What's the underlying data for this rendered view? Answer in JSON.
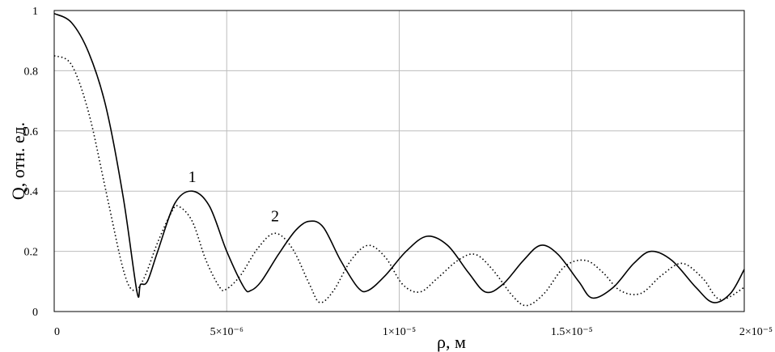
{
  "chart_data": {
    "type": "line",
    "title": "",
    "xlabel": "ρ, м",
    "ylabel": "Q, отн. ед.",
    "xlim": [
      0,
      2e-05
    ],
    "ylim": [
      0,
      1
    ],
    "grid": true,
    "x_ticks": [
      {
        "value": 0,
        "label": "0"
      },
      {
        "value": 5e-06,
        "label": "5×10⁻⁶"
      },
      {
        "value": 1e-05,
        "label": "1×10⁻⁵"
      },
      {
        "value": 1.5e-05,
        "label": "1.5×10⁻⁵"
      },
      {
        "value": 2e-05,
        "label": "2×10⁻⁵"
      }
    ],
    "y_ticks": [
      {
        "value": 0,
        "label": "0"
      },
      {
        "value": 0.2,
        "label": "0.2"
      },
      {
        "value": 0.4,
        "label": "0.4"
      },
      {
        "value": 0.6,
        "label": "0.6"
      },
      {
        "value": 0.8,
        "label": "0.8"
      },
      {
        "value": 1,
        "label": "1"
      }
    ],
    "series": [
      {
        "label": "1",
        "style": "solid",
        "label_at": [
          4e-06,
          0.43
        ],
        "points": [
          [
            0,
            0.99
          ],
          [
            5e-07,
            0.96
          ],
          [
            1e-06,
            0.86
          ],
          [
            1.5e-06,
            0.68
          ],
          [
            2e-06,
            0.38
          ],
          [
            2.5e-06,
            0.09
          ],
          [
            2.4e-06,
            0.065
          ],
          [
            2.7e-06,
            0.1
          ],
          [
            3e-06,
            0.2
          ],
          [
            3.5e-06,
            0.36
          ],
          [
            4e-06,
            0.4
          ],
          [
            4.5e-06,
            0.35
          ],
          [
            5e-06,
            0.2
          ],
          [
            5.5e-06,
            0.08
          ],
          [
            5.7e-06,
            0.07
          ],
          [
            6e-06,
            0.1
          ],
          [
            6.5e-06,
            0.19
          ],
          [
            7e-06,
            0.27
          ],
          [
            7.4e-06,
            0.3
          ],
          [
            7.8e-06,
            0.28
          ],
          [
            8.3e-06,
            0.17
          ],
          [
            8.8e-06,
            0.08
          ],
          [
            9.1e-06,
            0.07
          ],
          [
            9.6e-06,
            0.12
          ],
          [
            1.02e-05,
            0.2
          ],
          [
            1.08e-05,
            0.25
          ],
          [
            1.14e-05,
            0.22
          ],
          [
            1.2e-05,
            0.13
          ],
          [
            1.25e-05,
            0.065
          ],
          [
            1.3e-05,
            0.09
          ],
          [
            1.36e-05,
            0.17
          ],
          [
            1.41e-05,
            0.22
          ],
          [
            1.46e-05,
            0.19
          ],
          [
            1.52e-05,
            0.1
          ],
          [
            1.56e-05,
            0.045
          ],
          [
            1.62e-05,
            0.08
          ],
          [
            1.68e-05,
            0.16
          ],
          [
            1.73e-05,
            0.2
          ],
          [
            1.79e-05,
            0.17
          ],
          [
            1.86e-05,
            0.08
          ],
          [
            1.91e-05,
            0.03
          ],
          [
            1.96e-05,
            0.06
          ],
          [
            2e-05,
            0.14
          ]
        ]
      },
      {
        "label": "2",
        "style": "dotted",
        "label_at": [
          6.4e-06,
          0.3
        ],
        "points": [
          [
            0,
            0.85
          ],
          [
            5e-07,
            0.82
          ],
          [
            1e-06,
            0.66
          ],
          [
            1.5e-06,
            0.4
          ],
          [
            2e-06,
            0.14
          ],
          [
            2.3e-06,
            0.07
          ],
          [
            2.6e-06,
            0.11
          ],
          [
            3e-06,
            0.23
          ],
          [
            3.4e-06,
            0.33
          ],
          [
            3.6e-06,
            0.35
          ],
          [
            4e-06,
            0.3
          ],
          [
            4.4e-06,
            0.17
          ],
          [
            4.8e-06,
            0.08
          ],
          [
            5e-06,
            0.075
          ],
          [
            5.4e-06,
            0.12
          ],
          [
            5.9e-06,
            0.21
          ],
          [
            6.4e-06,
            0.26
          ],
          [
            6.9e-06,
            0.21
          ],
          [
            7.4e-06,
            0.09
          ],
          [
            7.7e-06,
            0.03
          ],
          [
            8.1e-06,
            0.07
          ],
          [
            8.6e-06,
            0.17
          ],
          [
            9.1e-06,
            0.22
          ],
          [
            9.6e-06,
            0.18
          ],
          [
            1.01e-05,
            0.09
          ],
          [
            1.06e-05,
            0.065
          ],
          [
            1.11e-05,
            0.11
          ],
          [
            1.17e-05,
            0.17
          ],
          [
            1.22e-05,
            0.19
          ],
          [
            1.27e-05,
            0.14
          ],
          [
            1.33e-05,
            0.05
          ],
          [
            1.37e-05,
            0.02
          ],
          [
            1.42e-05,
            0.06
          ],
          [
            1.48e-05,
            0.15
          ],
          [
            1.54e-05,
            0.17
          ],
          [
            1.59e-05,
            0.13
          ],
          [
            1.64e-05,
            0.07
          ],
          [
            1.7e-05,
            0.06
          ],
          [
            1.76e-05,
            0.12
          ],
          [
            1.82e-05,
            0.16
          ],
          [
            1.88e-05,
            0.11
          ],
          [
            1.93e-05,
            0.04
          ],
          [
            2e-05,
            0.08
          ]
        ]
      }
    ]
  }
}
